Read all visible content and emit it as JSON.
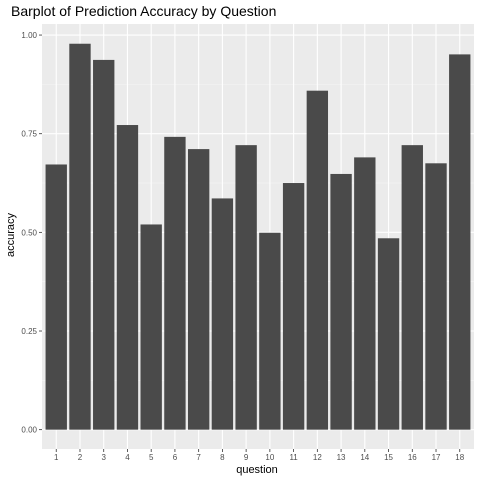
{
  "chart_data": {
    "type": "bar",
    "title": "Barplot of Prediction Accuracy by Question",
    "xlabel": "question",
    "ylabel": "accuracy",
    "categories": [
      "1",
      "2",
      "3",
      "4",
      "5",
      "6",
      "7",
      "8",
      "9",
      "10",
      "11",
      "12",
      "13",
      "14",
      "15",
      "16",
      "17",
      "18"
    ],
    "values": [
      0.672,
      0.978,
      0.937,
      0.772,
      0.52,
      0.742,
      0.711,
      0.586,
      0.721,
      0.499,
      0.625,
      0.859,
      0.648,
      0.69,
      0.485,
      0.721,
      0.675,
      0.951
    ],
    "ylim": [
      -0.049,
      1.028
    ],
    "yticks": [
      0.0,
      0.25,
      0.5,
      0.75,
      1.0
    ],
    "ytick_labels": [
      "0.00",
      "0.25",
      "0.50",
      "0.75",
      "1.00"
    ],
    "grid": true,
    "legend": "none",
    "colors": {
      "bar": "#4a4a4a",
      "panel": "#ebebeb",
      "grid_major": "#ffffff",
      "grid_minor": "#f5f5f5",
      "tick_text": "#4d4d4d"
    }
  }
}
